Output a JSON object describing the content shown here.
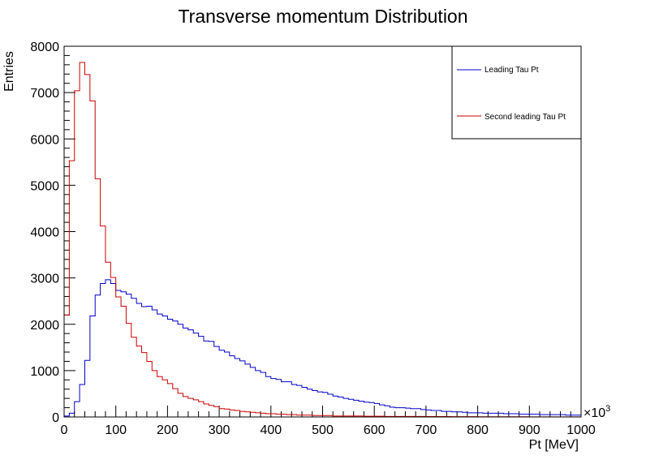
{
  "chart_data": {
    "type": "histogram",
    "title": "Transverse momentum Distribution",
    "xlabel": "Pt [MeV]",
    "ylabel": "Entries",
    "x_multiplier_label": "×10",
    "x_multiplier_exponent": "3",
    "xlim": [
      0,
      1000
    ],
    "ylim": [
      0,
      8000
    ],
    "bin_width": 10,
    "x_ticks": [
      "0",
      "100",
      "200",
      "300",
      "400",
      "500",
      "600",
      "700",
      "800",
      "900",
      "1000"
    ],
    "y_ticks": [
      "0",
      "1000",
      "2000",
      "3000",
      "4000",
      "5000",
      "6000",
      "7000",
      "8000"
    ],
    "legend_position": "top-right",
    "series": [
      {
        "name": "Leading Tau Pt",
        "color": "#0000cc",
        "values": [
          20,
          80,
          330,
          700,
          1220,
          2180,
          2630,
          2880,
          2960,
          2880,
          2730,
          2700,
          2650,
          2560,
          2450,
          2380,
          2390,
          2310,
          2220,
          2180,
          2110,
          2070,
          2000,
          1920,
          1880,
          1810,
          1740,
          1640,
          1630,
          1520,
          1440,
          1400,
          1320,
          1260,
          1210,
          1140,
          1070,
          1000,
          960,
          870,
          830,
          810,
          760,
          760,
          700,
          680,
          640,
          600,
          570,
          540,
          530,
          490,
          450,
          430,
          400,
          380,
          360,
          340,
          320,
          310,
          290,
          260,
          240,
          210,
          200,
          200,
          190,
          180,
          180,
          160,
          150,
          140,
          140,
          120,
          120,
          110,
          110,
          100,
          90,
          90,
          90,
          80,
          80,
          80,
          80,
          70,
          70,
          70,
          60,
          60,
          60,
          60,
          50,
          50,
          50,
          50,
          50,
          40,
          40,
          40
        ]
      },
      {
        "name": "Second leading Tau Pt",
        "color": "#cc0000",
        "values": [
          2200,
          5530,
          7040,
          7650,
          7390,
          6820,
          5140,
          4120,
          3340,
          3010,
          2590,
          2390,
          2020,
          1720,
          1530,
          1390,
          1200,
          1000,
          870,
          800,
          720,
          610,
          510,
          440,
          400,
          370,
          330,
          280,
          250,
          220,
          180,
          170,
          150,
          140,
          120,
          110,
          100,
          90,
          80,
          70,
          70,
          60,
          60,
          50,
          50,
          40,
          40,
          40,
          30,
          30,
          30,
          30,
          20,
          20,
          20,
          20,
          20,
          20,
          15,
          15,
          15,
          15,
          10,
          10,
          10,
          10,
          10,
          10,
          10,
          10,
          8,
          8,
          8,
          8,
          8,
          6,
          6,
          6,
          6,
          6,
          5,
          5,
          5,
          5,
          5,
          4,
          4,
          4,
          4,
          4,
          3,
          3,
          3,
          3,
          3,
          2,
          2,
          2,
          2,
          2
        ]
      }
    ]
  }
}
